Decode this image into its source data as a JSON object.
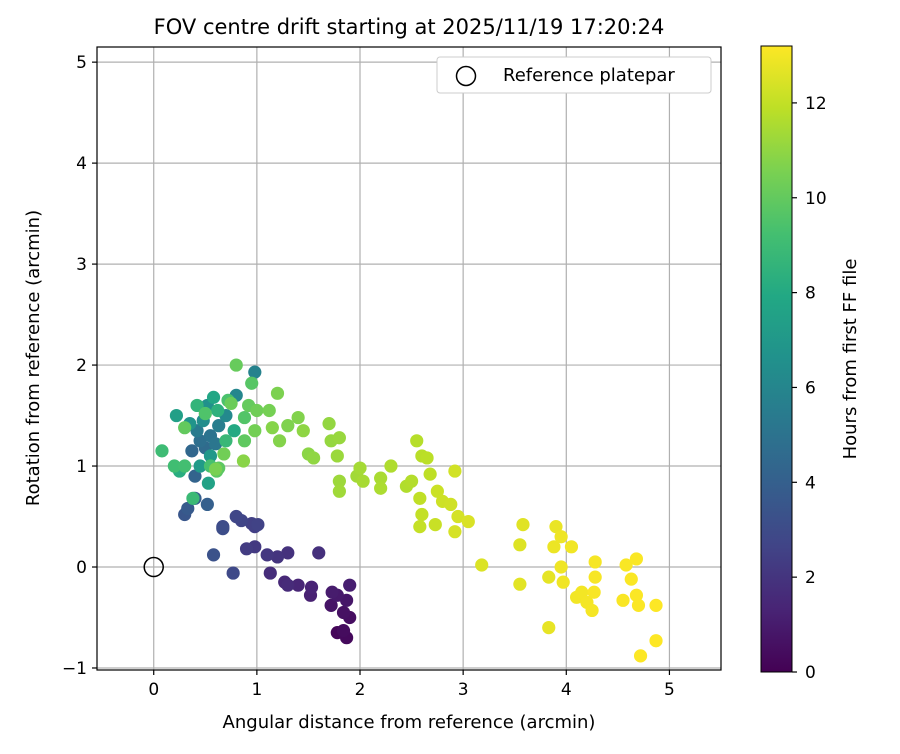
{
  "chart_data": {
    "type": "scatter",
    "title": "FOV centre drift starting at 2025/11/19 17:20:24",
    "xlabel": "Angular distance from reference (arcmin)",
    "ylabel": "Rotation from reference (arcmin)",
    "xlim": [
      -0.55,
      5.5
    ],
    "ylim": [
      -1.02,
      5.15
    ],
    "xticks": [
      0,
      1,
      2,
      3,
      4,
      5
    ],
    "yticks": [
      -1,
      0,
      1,
      2,
      3,
      4,
      5
    ],
    "xtick_labels": [
      "0",
      "1",
      "2",
      "3",
      "4",
      "5"
    ],
    "ytick_labels": [
      "−1",
      "0",
      "1",
      "2",
      "3",
      "4",
      "5"
    ],
    "grid": true,
    "legend": {
      "position": "top-right",
      "entries": [
        "Reference platepar"
      ]
    },
    "reference_point": {
      "label": "Reference platepar",
      "x": 0,
      "y": 0
    },
    "colorbar": {
      "label": "Hours from first FF file",
      "min": 0,
      "max": 13.2,
      "ticks": [
        0,
        2,
        4,
        6,
        8,
        10,
        12
      ],
      "tick_labels": [
        "0",
        "2",
        "4",
        "6",
        "8",
        "10",
        "12"
      ],
      "colormap": "viridis"
    },
    "series": [
      {
        "name": "FOV centre drift",
        "points": [
          {
            "x": 1.78,
            "y": -0.65,
            "t": 0.2
          },
          {
            "x": 1.87,
            "y": -0.7,
            "t": 0.3
          },
          {
            "x": 1.84,
            "y": -0.63,
            "t": 0.4
          },
          {
            "x": 1.9,
            "y": -0.5,
            "t": 0.5
          },
          {
            "x": 1.84,
            "y": -0.45,
            "t": 0.6
          },
          {
            "x": 1.72,
            "y": -0.38,
            "t": 0.7
          },
          {
            "x": 1.87,
            "y": -0.33,
            "t": 0.8
          },
          {
            "x": 1.78,
            "y": -0.28,
            "t": 0.9
          },
          {
            "x": 1.73,
            "y": -0.25,
            "t": 1.0
          },
          {
            "x": 1.9,
            "y": -0.18,
            "t": 1.1
          },
          {
            "x": 1.52,
            "y": -0.28,
            "t": 1.2
          },
          {
            "x": 1.53,
            "y": -0.2,
            "t": 1.3
          },
          {
            "x": 1.4,
            "y": -0.18,
            "t": 1.4
          },
          {
            "x": 1.27,
            "y": -0.15,
            "t": 1.5
          },
          {
            "x": 1.3,
            "y": -0.18,
            "t": 1.6
          },
          {
            "x": 1.13,
            "y": -0.06,
            "t": 1.7
          },
          {
            "x": 1.6,
            "y": 0.14,
            "t": 1.8
          },
          {
            "x": 1.3,
            "y": 0.14,
            "t": 1.9
          },
          {
            "x": 1.2,
            "y": 0.1,
            "t": 2.0
          },
          {
            "x": 1.1,
            "y": 0.12,
            "t": 2.1
          },
          {
            "x": 0.98,
            "y": 0.2,
            "t": 2.2
          },
          {
            "x": 0.9,
            "y": 0.18,
            "t": 2.3
          },
          {
            "x": 0.98,
            "y": 0.4,
            "t": 2.4
          },
          {
            "x": 0.95,
            "y": 0.43,
            "t": 2.5
          },
          {
            "x": 1.01,
            "y": 0.42,
            "t": 2.6
          },
          {
            "x": 0.85,
            "y": 0.46,
            "t": 2.7
          },
          {
            "x": 0.8,
            "y": 0.5,
            "t": 2.8
          },
          {
            "x": 0.77,
            "y": -0.06,
            "t": 2.9
          },
          {
            "x": 0.67,
            "y": 0.4,
            "t": 3.0
          },
          {
            "x": 0.67,
            "y": 0.38,
            "t": 3.1
          },
          {
            "x": 0.58,
            "y": 0.12,
            "t": 3.3
          },
          {
            "x": 0.3,
            "y": 0.52,
            "t": 3.5
          },
          {
            "x": 0.33,
            "y": 0.58,
            "t": 3.7
          },
          {
            "x": 0.4,
            "y": 0.68,
            "t": 3.9
          },
          {
            "x": 0.52,
            "y": 0.62,
            "t": 4.0
          },
          {
            "x": 0.4,
            "y": 0.9,
            "t": 4.2
          },
          {
            "x": 0.37,
            "y": 1.15,
            "t": 4.4
          },
          {
            "x": 0.5,
            "y": 1.18,
            "t": 4.6
          },
          {
            "x": 0.45,
            "y": 1.25,
            "t": 4.8
          },
          {
            "x": 0.55,
            "y": 1.3,
            "t": 5.0
          },
          {
            "x": 0.6,
            "y": 1.22,
            "t": 5.2
          },
          {
            "x": 0.42,
            "y": 1.35,
            "t": 5.4
          },
          {
            "x": 0.63,
            "y": 1.4,
            "t": 5.6
          },
          {
            "x": 0.98,
            "y": 1.93,
            "t": 5.8
          },
          {
            "x": 0.8,
            "y": 1.7,
            "t": 6.0
          },
          {
            "x": 0.7,
            "y": 1.5,
            "t": 6.2
          },
          {
            "x": 0.48,
            "y": 1.45,
            "t": 6.4
          },
          {
            "x": 0.52,
            "y": 1.6,
            "t": 6.6
          },
          {
            "x": 0.35,
            "y": 1.42,
            "t": 6.8
          },
          {
            "x": 0.55,
            "y": 1.1,
            "t": 7.0
          },
          {
            "x": 0.45,
            "y": 1.0,
            "t": 7.2
          },
          {
            "x": 0.22,
            "y": 1.5,
            "t": 7.4
          },
          {
            "x": 0.53,
            "y": 0.83,
            "t": 7.6
          },
          {
            "x": 0.58,
            "y": 1.68,
            "t": 7.8
          },
          {
            "x": 0.78,
            "y": 1.35,
            "t": 8.0
          },
          {
            "x": 0.25,
            "y": 0.95,
            "t": 8.2
          },
          {
            "x": 0.62,
            "y": 1.55,
            "t": 8.4
          },
          {
            "x": 0.42,
            "y": 1.6,
            "t": 8.6
          },
          {
            "x": 0.7,
            "y": 1.25,
            "t": 8.8
          },
          {
            "x": 0.38,
            "y": 0.68,
            "t": 8.9
          },
          {
            "x": 0.08,
            "y": 1.15,
            "t": 9.0
          },
          {
            "x": 0.2,
            "y": 1.0,
            "t": 9.1
          },
          {
            "x": 0.3,
            "y": 1.0,
            "t": 9.2
          },
          {
            "x": 0.55,
            "y": 1.0,
            "t": 9.3
          },
          {
            "x": 0.72,
            "y": 1.65,
            "t": 9.4
          },
          {
            "x": 0.5,
            "y": 1.52,
            "t": 9.5
          },
          {
            "x": 0.88,
            "y": 1.48,
            "t": 9.6
          },
          {
            "x": 0.95,
            "y": 1.82,
            "t": 9.7
          },
          {
            "x": 0.61,
            "y": 0.95,
            "t": 9.8
          },
          {
            "x": 0.63,
            "y": 0.98,
            "t": 9.85
          },
          {
            "x": 0.88,
            "y": 1.25,
            "t": 9.9
          },
          {
            "x": 0.3,
            "y": 1.38,
            "t": 10.0
          },
          {
            "x": 0.92,
            "y": 1.6,
            "t": 10.05
          },
          {
            "x": 0.8,
            "y": 2.0,
            "t": 10.1
          },
          {
            "x": 0.75,
            "y": 1.62,
            "t": 10.2
          },
          {
            "x": 1.0,
            "y": 1.55,
            "t": 10.3
          },
          {
            "x": 0.68,
            "y": 1.12,
            "t": 10.35
          },
          {
            "x": 0.98,
            "y": 1.35,
            "t": 10.4
          },
          {
            "x": 1.12,
            "y": 1.55,
            "t": 10.45
          },
          {
            "x": 0.6,
            "y": 0.97,
            "t": 10.5
          },
          {
            "x": 1.2,
            "y": 1.72,
            "t": 10.6
          },
          {
            "x": 1.3,
            "y": 1.4,
            "t": 10.65
          },
          {
            "x": 1.4,
            "y": 1.48,
            "t": 10.7
          },
          {
            "x": 1.22,
            "y": 1.25,
            "t": 10.75
          },
          {
            "x": 1.15,
            "y": 1.38,
            "t": 10.8
          },
          {
            "x": 0.87,
            "y": 1.05,
            "t": 10.85
          },
          {
            "x": 1.5,
            "y": 1.12,
            "t": 10.9
          },
          {
            "x": 1.45,
            "y": 1.35,
            "t": 10.95
          },
          {
            "x": 1.55,
            "y": 1.08,
            "t": 11.0
          },
          {
            "x": 1.7,
            "y": 1.42,
            "t": 11.05
          },
          {
            "x": 1.72,
            "y": 1.25,
            "t": 11.1
          },
          {
            "x": 1.8,
            "y": 1.28,
            "t": 11.15
          },
          {
            "x": 1.78,
            "y": 1.1,
            "t": 11.2
          },
          {
            "x": 1.8,
            "y": 0.85,
            "t": 11.25
          },
          {
            "x": 1.8,
            "y": 0.75,
            "t": 11.3
          },
          {
            "x": 1.97,
            "y": 0.9,
            "t": 11.35
          },
          {
            "x": 2.0,
            "y": 0.98,
            "t": 11.4
          },
          {
            "x": 2.03,
            "y": 0.85,
            "t": 11.45
          },
          {
            "x": 2.2,
            "y": 0.88,
            "t": 11.5
          },
          {
            "x": 2.2,
            "y": 0.78,
            "t": 11.55
          },
          {
            "x": 2.3,
            "y": 1.0,
            "t": 11.6
          },
          {
            "x": 2.45,
            "y": 0.8,
            "t": 11.65
          },
          {
            "x": 2.5,
            "y": 0.85,
            "t": 11.7
          },
          {
            "x": 2.55,
            "y": 1.25,
            "t": 11.75
          },
          {
            "x": 2.6,
            "y": 1.1,
            "t": 11.8
          },
          {
            "x": 2.65,
            "y": 1.08,
            "t": 11.85
          },
          {
            "x": 2.68,
            "y": 0.92,
            "t": 11.9
          },
          {
            "x": 2.58,
            "y": 0.68,
            "t": 11.95
          },
          {
            "x": 2.6,
            "y": 0.52,
            "t": 12.0
          },
          {
            "x": 2.58,
            "y": 0.4,
            "t": 12.05
          },
          {
            "x": 2.73,
            "y": 0.42,
            "t": 12.1
          },
          {
            "x": 2.75,
            "y": 0.75,
            "t": 12.15
          },
          {
            "x": 2.8,
            "y": 0.65,
            "t": 12.2
          },
          {
            "x": 2.88,
            "y": 0.62,
            "t": 12.25
          },
          {
            "x": 2.92,
            "y": 0.95,
            "t": 12.3
          },
          {
            "x": 2.95,
            "y": 0.5,
            "t": 12.35
          },
          {
            "x": 2.92,
            "y": 0.35,
            "t": 12.4
          },
          {
            "x": 3.05,
            "y": 0.45,
            "t": 12.45
          },
          {
            "x": 3.18,
            "y": 0.02,
            "t": 12.5
          },
          {
            "x": 3.55,
            "y": 0.22,
            "t": 12.55
          },
          {
            "x": 3.58,
            "y": 0.42,
            "t": 12.6
          },
          {
            "x": 3.55,
            "y": -0.17,
            "t": 12.65
          },
          {
            "x": 3.83,
            "y": -0.1,
            "t": 12.7
          },
          {
            "x": 3.83,
            "y": -0.6,
            "t": 12.75
          },
          {
            "x": 3.9,
            "y": 0.4,
            "t": 12.8
          },
          {
            "x": 3.88,
            "y": 0.2,
            "t": 12.85
          },
          {
            "x": 3.95,
            "y": 0.3,
            "t": 12.9
          },
          {
            "x": 3.95,
            "y": 0.0,
            "t": 12.92
          },
          {
            "x": 3.97,
            "y": -0.15,
            "t": 12.94
          },
          {
            "x": 4.05,
            "y": 0.2,
            "t": 12.96
          },
          {
            "x": 4.1,
            "y": -0.3,
            "t": 12.98
          },
          {
            "x": 4.15,
            "y": -0.25,
            "t": 13.0
          },
          {
            "x": 4.2,
            "y": -0.35,
            "t": 13.02
          },
          {
            "x": 4.25,
            "y": -0.43,
            "t": 13.04
          },
          {
            "x": 4.28,
            "y": 0.05,
            "t": 13.06
          },
          {
            "x": 4.28,
            "y": -0.1,
            "t": 13.08
          },
          {
            "x": 4.27,
            "y": -0.25,
            "t": 13.1
          },
          {
            "x": 4.55,
            "y": -0.33,
            "t": 13.11
          },
          {
            "x": 4.58,
            "y": 0.02,
            "t": 13.12
          },
          {
            "x": 4.63,
            "y": -0.12,
            "t": 13.13
          },
          {
            "x": 4.68,
            "y": 0.08,
            "t": 13.14
          },
          {
            "x": 4.68,
            "y": -0.28,
            "t": 13.15
          },
          {
            "x": 4.7,
            "y": -0.38,
            "t": 13.16
          },
          {
            "x": 4.72,
            "y": -0.88,
            "t": 13.17
          },
          {
            "x": 4.87,
            "y": -0.38,
            "t": 13.18
          },
          {
            "x": 4.87,
            "y": -0.73,
            "t": 13.19
          }
        ]
      }
    ]
  }
}
